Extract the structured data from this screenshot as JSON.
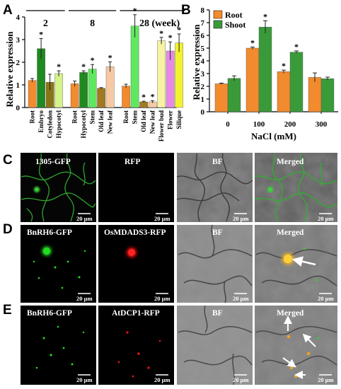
{
  "panels": {
    "a": "A",
    "b": "B",
    "c": "C",
    "d": "D",
    "e": "E"
  },
  "colors": {
    "root": "#f28a2e",
    "shoot": "#3a9a3a",
    "embryo": "#1f8a1f",
    "cotyledon": "#8a7418",
    "hypocotyl": "#d6f28a",
    "stem": "#5fe85f",
    "old_leaf": "#a07a1e",
    "new_leaf": "#f7c9a3",
    "flower_bud": "#f7f3a3",
    "flower": "#e68ae6",
    "silique": "#f2f22e",
    "gfp": "#22dd22",
    "rfp": "#ee1111",
    "merge": "#f5b31a"
  },
  "chart_data": [
    {
      "type": "bar",
      "ylabel": "Relative expression",
      "ylim": [
        0,
        4
      ],
      "yticks": [
        0,
        1,
        2,
        3,
        4
      ],
      "group_labels": [
        "2",
        "8",
        "28 (week)"
      ],
      "bars": [
        {
          "group": 0,
          "label": "Root",
          "value": 1.2,
          "err": 0.08,
          "sig": false,
          "color": "#f28a2e"
        },
        {
          "group": 0,
          "label": "Embryo",
          "value": 2.6,
          "err": 0.45,
          "sig": true,
          "color": "#1f8a1f"
        },
        {
          "group": 0,
          "label": "Cotyledon",
          "value": 1.12,
          "err": 0.35,
          "sig": false,
          "color": "#8a7418"
        },
        {
          "group": 0,
          "label": "Hypocotyl",
          "value": 1.5,
          "err": 0.12,
          "sig": true,
          "color": "#d6f28a"
        },
        {
          "group": 1,
          "label": "Root",
          "value": 1.05,
          "err": 0.12,
          "sig": false,
          "color": "#f28a2e"
        },
        {
          "group": 1,
          "label": "Hypocotyl",
          "value": 1.55,
          "err": 0.07,
          "sig": true,
          "color": "#1f8a1f"
        },
        {
          "group": 1,
          "label": "Stem",
          "value": 1.7,
          "err": 0.2,
          "sig": true,
          "color": "#5fe85f"
        },
        {
          "group": 1,
          "label": "Old leaf",
          "value": 0.85,
          "err": 0.03,
          "sig": false,
          "color": "#a07a1e"
        },
        {
          "group": 1,
          "label": "New leaf",
          "value": 1.8,
          "err": 0.22,
          "sig": true,
          "color": "#f7c9a3"
        },
        {
          "group": 2,
          "label": "Root",
          "value": 0.95,
          "err": 0.08,
          "sig": false,
          "color": "#f28a2e"
        },
        {
          "group": 2,
          "label": "Stem",
          "value": 3.6,
          "err": 0.5,
          "sig": true,
          "color": "#5fe85f"
        },
        {
          "group": 2,
          "label": "Old leaf",
          "value": 0.25,
          "err": 0.03,
          "sig": true,
          "color": "#a07a1e"
        },
        {
          "group": 2,
          "label": "New leaf",
          "value": 0.25,
          "err": 0.05,
          "sig": true,
          "color": "#f7c9a3"
        },
        {
          "group": 2,
          "label": "Flower bud",
          "value": 2.95,
          "err": 0.15,
          "sig": true,
          "color": "#f7f3a3"
        },
        {
          "group": 2,
          "label": "Flower",
          "value": 2.5,
          "err": 0.4,
          "sig": true,
          "color": "#e68ae6"
        },
        {
          "group": 2,
          "label": "Silique",
          "value": 2.85,
          "err": 0.4,
          "sig": true,
          "color": "#f2f22e"
        }
      ]
    },
    {
      "type": "bar",
      "ylabel": "Relative expression",
      "xlabel": "NaCl (mM)",
      "ylim": [
        0,
        8
      ],
      "yticks": [
        0,
        1,
        2,
        3,
        4,
        5,
        6,
        7,
        8
      ],
      "categories": [
        "0",
        "100",
        "200",
        "300"
      ],
      "series": [
        {
          "name": "Root",
          "color": "#f28a2e",
          "values": [
            2.2,
            5.0,
            3.15,
            2.7
          ],
          "errors": [
            0.05,
            0.08,
            0.12,
            0.35
          ],
          "sig": [
            false,
            true,
            true,
            false
          ]
        },
        {
          "name": "Shoot",
          "color": "#3a9a3a",
          "values": [
            2.62,
            6.65,
            4.68,
            2.6
          ],
          "errors": [
            0.2,
            0.5,
            0.1,
            0.12
          ],
          "sig": [
            false,
            true,
            true,
            false
          ]
        }
      ],
      "legend": "top-left"
    }
  ],
  "microscopy": {
    "rows": [
      {
        "labels": [
          "1305-GFP",
          "RFP",
          "BF",
          "Merged"
        ],
        "scale": "20 μm"
      },
      {
        "labels": [
          "BnRH6-GFP",
          "OsMDADS3-RFP",
          "BF",
          "Merged"
        ],
        "scale": "20 μm"
      },
      {
        "labels": [
          "BnRH6-GFP",
          "AtDCP1-RFP",
          "BF",
          "Merged"
        ],
        "scale": "20 μm"
      }
    ]
  },
  "star": "*"
}
